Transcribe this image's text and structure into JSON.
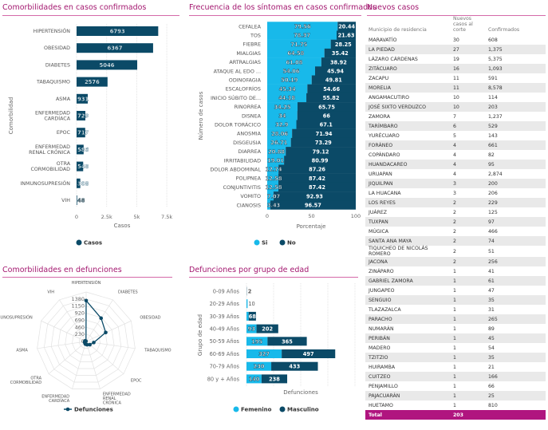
{
  "panels": {
    "comorb_confirmados": "Comorbilidades en casos confirmados",
    "sintomas": "Frecuencia de los síntomas en casos confirmados",
    "nuevos": "Nuevos casos",
    "comorb_defunciones": "Comorbilidades en defunciones",
    "edad": "Defunciones por grupo de edad"
  },
  "colors": {
    "dark": "#0b4a67",
    "light": "#18b9ea",
    "accent": "#a3176f",
    "total_row": "#b0157f"
  },
  "chart_data": [
    {
      "type": "bar",
      "orientation": "horizontal",
      "categories": [
        "HIPERTENSIÓN",
        "OBESIDAD",
        "DIABETES",
        "TABAQUISMO",
        "ASMA",
        "ENFERMEDAD CARDÍACA",
        "EPOC",
        "ENFERMEDAD RENAL CRÓNICA",
        "OTRA CORMOBILIDAD",
        "INMUNOSUPRESIÓN",
        "VIH"
      ],
      "series": [
        {
          "name": "Casos",
          "values": [
            6793,
            6367,
            5046,
            2576,
            931,
            729,
            717,
            586,
            548,
            308,
            48
          ]
        }
      ],
      "xlabel": "Casos",
      "ylabel": "Comorbilidad",
      "xlim": [
        0,
        7500
      ],
      "xticks": [
        "0",
        "2.5k",
        "5k",
        "7.5k"
      ],
      "legend": "bottom"
    },
    {
      "type": "bar",
      "orientation": "horizontal",
      "stacked": true,
      "categories": [
        "CEFALEA",
        "TOS",
        "FIEBRE",
        "MIALGIAS",
        "ARTRALGIAS",
        "ATAQUE AL EDO ...",
        "ODINOFAGIA",
        "ESCALOFRÍOS",
        "INICIO SÚBITO DE...",
        "RINORREA",
        "DISNEA",
        "DOLOR TORÁCICO",
        "ANOSMIA",
        "DISGEUSIA",
        "DIARREA",
        "IRRITABILIDAD",
        "DOLOR ABDOMINAL",
        "POLIPNEA",
        "CONJUNTIVITIS",
        "VOMITO",
        "CIANOSIS"
      ],
      "series": [
        {
          "name": "Si",
          "values": [
            79.56,
            78.37,
            71.75,
            64.58,
            61.08,
            54.06,
            50.19,
            45.34,
            44.18,
            34.25,
            34,
            32.9,
            28.06,
            26.71,
            20.88,
            19.01,
            12.74,
            12.58,
            12.58,
            7.07,
            3.43
          ]
        },
        {
          "name": "No",
          "values": [
            20.44,
            21.63,
            28.25,
            35.42,
            38.92,
            45.94,
            49.81,
            54.66,
            55.82,
            65.75,
            66,
            67.1,
            71.94,
            73.29,
            79.12,
            80.99,
            87.26,
            87.42,
            87.42,
            92.93,
            96.57
          ]
        }
      ],
      "xlabel": "Porcentaje",
      "ylabel": "Número de casos",
      "xlim": [
        0,
        100
      ],
      "xticks": [
        "0",
        "50",
        "100"
      ],
      "legend": "bottom"
    },
    {
      "type": "radar",
      "categories": [
        "HIPERTENSIÓN",
        "DIABETES",
        "OBESIDAD",
        "TABAQUISMO",
        "EPOC",
        "ENFERMEDAD RENAL CRÓNICA",
        "ENFERMEDAD CARDÍACA",
        "OTRA CORMOBILIDAD",
        "ASMA",
        "INMUNOSUPRESIÓN",
        "VIH"
      ],
      "series": [
        {
          "name": "Defunciones",
          "values": [
            1330,
            900,
            700,
            250,
            160,
            110,
            90,
            60,
            50,
            40,
            10
          ]
        }
      ],
      "rticks": [
        "0",
        "230",
        "460",
        "690",
        "920",
        "1150",
        "1380"
      ],
      "rmax": 1610,
      "legend": "bottom"
    },
    {
      "type": "bar",
      "orientation": "horizontal",
      "stacked": true,
      "categories": [
        "0-09 Años",
        "20-29 Años",
        "30-39 Años",
        "40-49 Años",
        "50-59 Años",
        "60-69 Años",
        "70-79 Años",
        "80 y + Años"
      ],
      "series": [
        {
          "name": "Femenino",
          "values": [
            0,
            10,
            20,
            93,
            195,
            327,
            230,
            140
          ]
        },
        {
          "name": "Masculino",
          "values": [
            2,
            0,
            68,
            202,
            365,
            497,
            433,
            238
          ]
        }
      ],
      "xlabel": "Defunciones",
      "ylabel": "Grupo de edad",
      "xlim": [
        0,
        1000
      ],
      "legend": "bottom"
    }
  ],
  "table": {
    "headers": [
      "Municipio de residencia",
      "Nuevos casos al corte",
      "Confirmados"
    ],
    "rows": [
      [
        "MARAVATÍO",
        "30",
        "608"
      ],
      [
        "LA PIEDAD",
        "27",
        "1,375"
      ],
      [
        "LÁZARO CÁRDENAS",
        "19",
        "5,375"
      ],
      [
        "ZITÁCUARO",
        "16",
        "1,093"
      ],
      [
        "ZACAPU",
        "11",
        "591"
      ],
      [
        "MORELIA",
        "11",
        "8,578"
      ],
      [
        "ANGAMACUTIRO",
        "10",
        "114"
      ],
      [
        "JOSÉ SIXTO VERDUZCO",
        "10",
        "203"
      ],
      [
        "ZAMORA",
        "7",
        "1,237"
      ],
      [
        "TARÍMBARO",
        "6",
        "529"
      ],
      [
        "YURÉCUARO",
        "5",
        "143"
      ],
      [
        "FORÁNEO",
        "4",
        "661"
      ],
      [
        "COPÁNDARO",
        "4",
        "82"
      ],
      [
        "HUANDACAREO",
        "4",
        "95"
      ],
      [
        "URUAPAN",
        "4",
        "2,874"
      ],
      [
        "JIQUILPAN",
        "3",
        "200"
      ],
      [
        "LA HUACANA",
        "3",
        "206"
      ],
      [
        "LOS REYES",
        "2",
        "229"
      ],
      [
        "JUÁREZ",
        "2",
        "125"
      ],
      [
        "TUXPAN",
        "2",
        "97"
      ],
      [
        "MÚGICA",
        "2",
        "466"
      ],
      [
        "SANTA ANA MAYA",
        "2",
        "74"
      ],
      [
        "TIQUICHEO DE NICOLÁS ROMERO",
        "2",
        "51"
      ],
      [
        "JACONA",
        "2",
        "256"
      ],
      [
        "ZINÁPARO",
        "1",
        "41"
      ],
      [
        "GABRIEL ZAMORA",
        "1",
        "61"
      ],
      [
        "JUNGAPEO",
        "1",
        "47"
      ],
      [
        "SENGUIO",
        "1",
        "35"
      ],
      [
        "TLAZAZALCA",
        "1",
        "31"
      ],
      [
        "PARACHO",
        "1",
        "265"
      ],
      [
        "NUMARÁN",
        "1",
        "89"
      ],
      [
        "PERIBÁN",
        "1",
        "45"
      ],
      [
        "MADERO",
        "1",
        "54"
      ],
      [
        "TZITZIO",
        "1",
        "35"
      ],
      [
        "HUIRAMBA",
        "1",
        "21"
      ],
      [
        "CUITZEO",
        "1",
        "166"
      ],
      [
        "PENJAMILLO",
        "1",
        "66"
      ],
      [
        "PAJACUARÁN",
        "1",
        "25"
      ],
      [
        "HUETAMO",
        "1",
        "810"
      ]
    ],
    "total": [
      "Total",
      "203",
      ""
    ]
  }
}
